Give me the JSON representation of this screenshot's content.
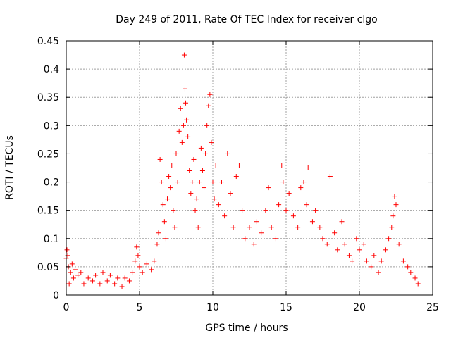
{
  "chart_data": {
    "type": "scatter",
    "title": "Day 249 of 2011, Rate Of TEC Index for receiver clgo",
    "xlabel": "GPS time / hours",
    "ylabel": "ROTI / TECUs",
    "xlim": [
      0,
      25
    ],
    "ylim": [
      0,
      0.45
    ],
    "x_ticks": [
      "0",
      "5",
      "10",
      "15",
      "20",
      "25"
    ],
    "y_ticks": [
      "0",
      "0.05",
      "0.1",
      "0.15",
      "0.2",
      "0.25",
      "0.3",
      "0.35",
      "0.4",
      "0.45"
    ],
    "grid": true,
    "legend": "none",
    "marker": "+",
    "series": [
      {
        "color": "#ff0000",
        "x": [
          0.0,
          0.05,
          0.1,
          0.15,
          0.2,
          0.3,
          0.4,
          0.5,
          0.6,
          0.8,
          1.0,
          1.2,
          1.5,
          1.8,
          2.0,
          2.3,
          2.5,
          2.8,
          3.0,
          3.3,
          3.5,
          3.8,
          4.0,
          4.3,
          4.5,
          4.7,
          4.8,
          4.9,
          5.0,
          5.2,
          5.5,
          5.8,
          6.0,
          6.2,
          6.3,
          6.4,
          6.5,
          6.6,
          6.7,
          6.8,
          6.9,
          7.0,
          7.1,
          7.2,
          7.3,
          7.4,
          7.5,
          7.6,
          7.7,
          7.8,
          7.9,
          8.0,
          8.05,
          8.1,
          8.15,
          8.2,
          8.3,
          8.4,
          8.5,
          8.6,
          8.7,
          8.8,
          8.9,
          9.0,
          9.1,
          9.2,
          9.3,
          9.4,
          9.5,
          9.6,
          9.7,
          9.8,
          9.9,
          10.0,
          10.1,
          10.2,
          10.4,
          10.6,
          10.8,
          11.0,
          11.2,
          11.4,
          11.6,
          11.8,
          12.0,
          12.2,
          12.5,
          12.8,
          13.0,
          13.3,
          13.6,
          13.8,
          14.0,
          14.3,
          14.5,
          14.7,
          14.8,
          15.0,
          15.2,
          15.5,
          15.8,
          16.0,
          16.2,
          16.4,
          16.5,
          16.8,
          17.0,
          17.3,
          17.5,
          17.8,
          18.0,
          18.3,
          18.5,
          18.8,
          19.0,
          19.3,
          19.5,
          19.8,
          20.0,
          20.3,
          20.5,
          20.8,
          21.0,
          21.3,
          21.5,
          21.8,
          22.0,
          22.2,
          22.3,
          22.4,
          22.5,
          22.7,
          23.0,
          23.3,
          23.5,
          23.8,
          24.0
        ],
        "y": [
          0.065,
          0.08,
          0.07,
          0.05,
          0.02,
          0.04,
          0.055,
          0.03,
          0.045,
          0.035,
          0.04,
          0.02,
          0.03,
          0.025,
          0.035,
          0.02,
          0.04,
          0.025,
          0.035,
          0.02,
          0.03,
          0.015,
          0.03,
          0.025,
          0.04,
          0.06,
          0.085,
          0.07,
          0.05,
          0.04,
          0.055,
          0.045,
          0.06,
          0.09,
          0.11,
          0.24,
          0.2,
          0.16,
          0.13,
          0.1,
          0.17,
          0.21,
          0.19,
          0.23,
          0.15,
          0.12,
          0.25,
          0.2,
          0.29,
          0.33,
          0.27,
          0.3,
          0.425,
          0.365,
          0.34,
          0.31,
          0.28,
          0.22,
          0.18,
          0.2,
          0.24,
          0.15,
          0.17,
          0.12,
          0.2,
          0.26,
          0.22,
          0.19,
          0.25,
          0.3,
          0.335,
          0.355,
          0.27,
          0.2,
          0.17,
          0.23,
          0.16,
          0.2,
          0.14,
          0.25,
          0.18,
          0.12,
          0.21,
          0.23,
          0.15,
          0.1,
          0.12,
          0.09,
          0.13,
          0.11,
          0.15,
          0.19,
          0.12,
          0.1,
          0.16,
          0.23,
          0.2,
          0.15,
          0.18,
          0.14,
          0.12,
          0.19,
          0.2,
          0.16,
          0.225,
          0.13,
          0.15,
          0.12,
          0.1,
          0.09,
          0.21,
          0.11,
          0.08,
          0.13,
          0.09,
          0.07,
          0.06,
          0.1,
          0.08,
          0.09,
          0.06,
          0.05,
          0.07,
          0.04,
          0.06,
          0.08,
          0.1,
          0.12,
          0.14,
          0.175,
          0.16,
          0.09,
          0.06,
          0.05,
          0.04,
          0.03,
          0.02
        ]
      }
    ]
  }
}
